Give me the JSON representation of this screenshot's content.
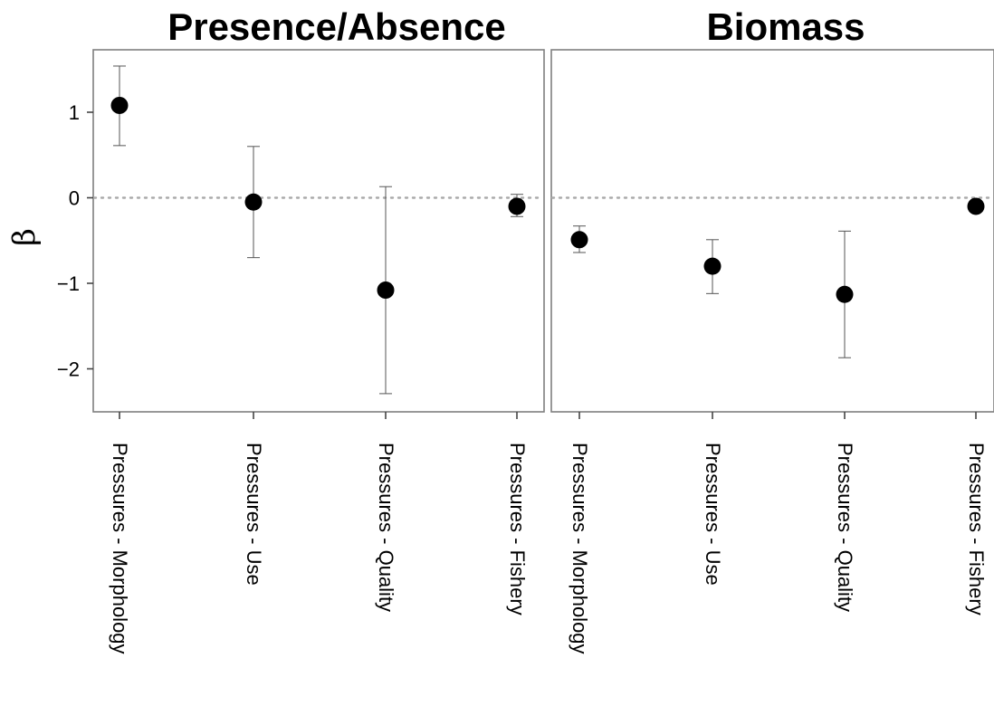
{
  "chart_data": {
    "type": "scatter",
    "ylabel": "β",
    "xlabel": "",
    "ylim": [
      -2.5,
      1.7
    ],
    "yticks": [
      1,
      0,
      -1,
      -2
    ],
    "ytick_labels": [
      "1",
      "0",
      "−1",
      "−2"
    ],
    "reference_line": 0,
    "grid": false,
    "point_color": "#000000",
    "errorbar_color": "#555555",
    "panel_border_color": "#7f7f7f",
    "reference_line_color": "#aaaaaa",
    "panels": [
      {
        "title": "Presence/Absence",
        "categories": [
          "Pressures - Morphology",
          "Pressures - Use",
          "Pressures - Quality",
          "Pressures - Fishery"
        ],
        "values": [
          1.08,
          -0.05,
          -1.08,
          -0.1
        ],
        "lower": [
          0.61,
          -0.7,
          -2.29,
          -0.22
        ],
        "upper": [
          1.54,
          0.6,
          0.13,
          0.04
        ]
      },
      {
        "title": "Biomass",
        "categories": [
          "Pressures - Morphology",
          "Pressures - Use",
          "Pressures - Quality",
          "Pressures - Fishery"
        ],
        "values": [
          -0.49,
          -0.8,
          -1.13,
          -0.1
        ],
        "lower": [
          -0.64,
          -1.12,
          -1.87,
          -0.1
        ],
        "upper": [
          -0.33,
          -0.49,
          -0.39,
          -0.1
        ]
      }
    ]
  }
}
